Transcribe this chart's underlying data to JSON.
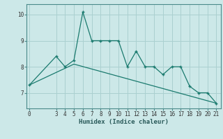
{
  "xlabel": "Humidex (Indice chaleur)",
  "bg_color": "#cce8e8",
  "grid_color": "#aad0d0",
  "line_color": "#1a7a6e",
  "x_data": [
    0,
    3,
    4,
    5,
    6,
    7,
    8,
    9,
    10,
    11,
    12,
    13,
    14,
    15,
    16,
    17,
    18,
    19,
    20,
    21
  ],
  "y_data": [
    7.3,
    8.4,
    8.0,
    8.25,
    10.1,
    9.0,
    9.0,
    9.0,
    9.0,
    8.0,
    8.6,
    8.0,
    8.0,
    7.7,
    8.0,
    8.0,
    7.25,
    7.0,
    7.0,
    6.6
  ],
  "trend_x": [
    0,
    5,
    21
  ],
  "trend_y": [
    7.3,
    8.1,
    6.6
  ],
  "ylim": [
    6.4,
    10.4
  ],
  "yticks": [
    7,
    8,
    9,
    10
  ],
  "xticks": [
    0,
    3,
    4,
    5,
    6,
    7,
    8,
    9,
    10,
    11,
    12,
    13,
    14,
    15,
    16,
    17,
    18,
    19,
    20,
    21
  ],
  "xlim": [
    -0.3,
    21.5
  ],
  "tick_fontsize": 5.5,
  "label_fontsize": 6.5
}
